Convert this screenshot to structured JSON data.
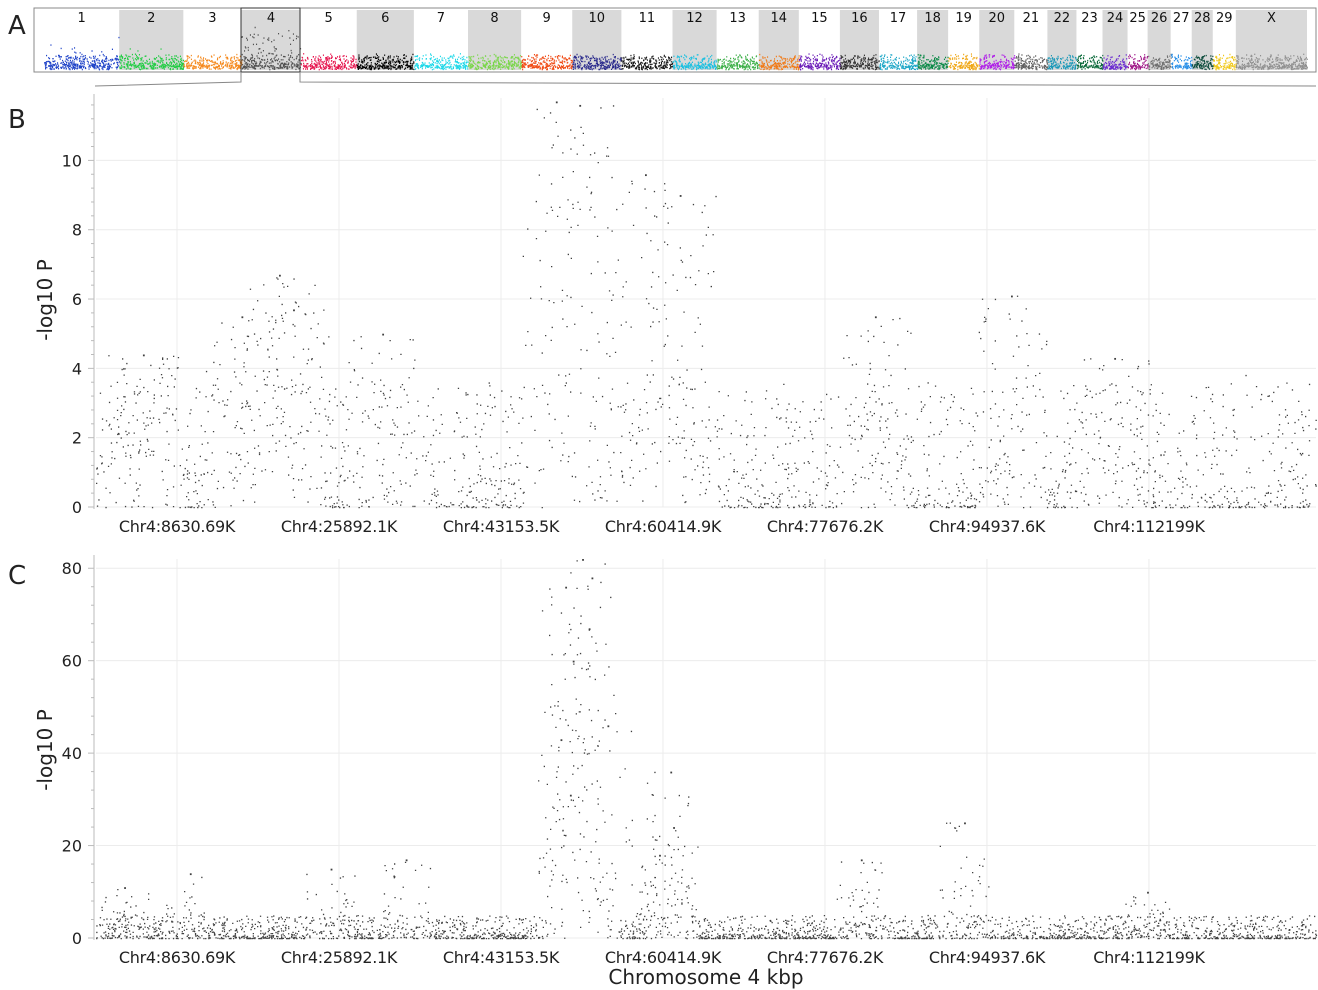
{
  "panel_letters": {
    "a": "A",
    "b": "B",
    "c": "C"
  },
  "chart_data": [
    {
      "panel": "A",
      "type": "scatter",
      "title": "",
      "xlabel": "",
      "ylabel": "",
      "chromosomes": [
        {
          "label": "1",
          "color": "#1f43c8",
          "shade": false
        },
        {
          "label": "2",
          "color": "#22cc44",
          "shade": true
        },
        {
          "label": "3",
          "color": "#f58a1f",
          "shade": false
        },
        {
          "label": "4",
          "color": "#505050",
          "shade": true
        },
        {
          "label": "5",
          "color": "#e6174f",
          "shade": false
        },
        {
          "label": "6",
          "color": "#000000",
          "shade": true
        },
        {
          "label": "7",
          "color": "#1fd8e8",
          "shade": false
        },
        {
          "label": "8",
          "color": "#7ad64a",
          "shade": true
        },
        {
          "label": "9",
          "color": "#f04a14",
          "shade": false
        },
        {
          "label": "10",
          "color": "#2a2a8c",
          "shade": true
        },
        {
          "label": "11",
          "color": "#1a1a1a",
          "shade": false
        },
        {
          "label": "12",
          "color": "#1ec0e0",
          "shade": true
        },
        {
          "label": "13",
          "color": "#3fb04a",
          "shade": false
        },
        {
          "label": "14",
          "color": "#f07a18",
          "shade": true
        },
        {
          "label": "15",
          "color": "#6a1ab8",
          "shade": false
        },
        {
          "label": "16",
          "color": "#333333",
          "shade": true
        },
        {
          "label": "17",
          "color": "#20a8c8",
          "shade": false
        },
        {
          "label": "18",
          "color": "#0c8a48",
          "shade": true
        },
        {
          "label": "19",
          "color": "#f0a818",
          "shade": false
        },
        {
          "label": "20",
          "color": "#b020e8",
          "shade": true
        },
        {
          "label": "21",
          "color": "#606060",
          "shade": false
        },
        {
          "label": "22",
          "color": "#1a98b8",
          "shade": true
        },
        {
          "label": "23",
          "color": "#0a6a3a",
          "shade": false
        },
        {
          "label": "24",
          "color": "#6a2ad0",
          "shade": true
        },
        {
          "label": "25",
          "color": "#a01888",
          "shade": false
        },
        {
          "label": "26",
          "color": "#707070",
          "shade": true
        },
        {
          "label": "27",
          "color": "#2a90e8",
          "shade": false
        },
        {
          "label": "28",
          "color": "#0a4a3a",
          "shade": true
        },
        {
          "label": "29",
          "color": "#f0c818",
          "shade": false
        },
        {
          "label": "X",
          "color": "#909090",
          "shade": true
        }
      ]
    },
    {
      "panel": "B",
      "type": "scatter",
      "title": "",
      "xlabel": "",
      "ylabel": "-log10 P",
      "xlim": [
        0,
        130000
      ],
      "ylim": [
        0,
        11.8
      ],
      "y_ticks": [
        0,
        2,
        4,
        6,
        8,
        10
      ],
      "x_tick_values": [
        8630.69,
        25892.1,
        43153.5,
        60414.9,
        77676.2,
        94937.6,
        112199
      ],
      "x_tick_labels": [
        "Chr4:8630.69K",
        "Chr4:25892.1K",
        "Chr4:43153.5K",
        "Chr4:60414.9K",
        "Chr4:77676.2K",
        "Chr4:94937.6K",
        "Chr4:112199K"
      ],
      "grid": true,
      "point_color": "#404040",
      "peaks": [
        {
          "x": 49000,
          "y": 11.7
        },
        {
          "x": 51500,
          "y": 11.6
        },
        {
          "x": 58500,
          "y": 9.6
        },
        {
          "x": 62200,
          "y": 9.0
        },
        {
          "x": 19500,
          "y": 6.7
        },
        {
          "x": 21000,
          "y": 5.7
        },
        {
          "x": 15500,
          "y": 5.5
        },
        {
          "x": 30500,
          "y": 5.0
        },
        {
          "x": 97500,
          "y": 6.1
        },
        {
          "x": 83000,
          "y": 5.5
        },
        {
          "x": 5000,
          "y": 4.4
        },
        {
          "x": 108500,
          "y": 4.3
        }
      ]
    },
    {
      "panel": "C",
      "type": "scatter",
      "title": "",
      "xlabel": "Chromosome 4 kbp",
      "ylabel": "-log10 P",
      "xlim": [
        0,
        130000
      ],
      "ylim": [
        0,
        82
      ],
      "y_ticks": [
        0,
        20,
        40,
        60,
        80
      ],
      "x_tick_values": [
        8630.69,
        25892.1,
        43153.5,
        60414.9,
        77676.2,
        94937.6,
        112199
      ],
      "x_tick_labels": [
        "Chr4:8630.69K",
        "Chr4:25892.1K",
        "Chr4:43153.5K",
        "Chr4:60414.9K",
        "Chr4:77676.2K",
        "Chr4:94937.6K",
        "Chr4:112199K"
      ],
      "grid": true,
      "point_color": "#404040",
      "peaks": [
        {
          "x": 51800,
          "y": 82
        },
        {
          "x": 50000,
          "y": 76
        },
        {
          "x": 52800,
          "y": 78
        },
        {
          "x": 50800,
          "y": 60
        },
        {
          "x": 52500,
          "y": 67
        },
        {
          "x": 54500,
          "y": 46
        },
        {
          "x": 49500,
          "y": 43
        },
        {
          "x": 50500,
          "y": 31
        },
        {
          "x": 61200,
          "y": 36
        },
        {
          "x": 61500,
          "y": 24
        },
        {
          "x": 92500,
          "y": 25
        },
        {
          "x": 60000,
          "y": 18
        },
        {
          "x": 33000,
          "y": 17
        },
        {
          "x": 81500,
          "y": 17
        },
        {
          "x": 25000,
          "y": 15
        },
        {
          "x": 10000,
          "y": 14
        },
        {
          "x": 3000,
          "y": 11
        },
        {
          "x": 112000,
          "y": 10
        }
      ]
    }
  ]
}
